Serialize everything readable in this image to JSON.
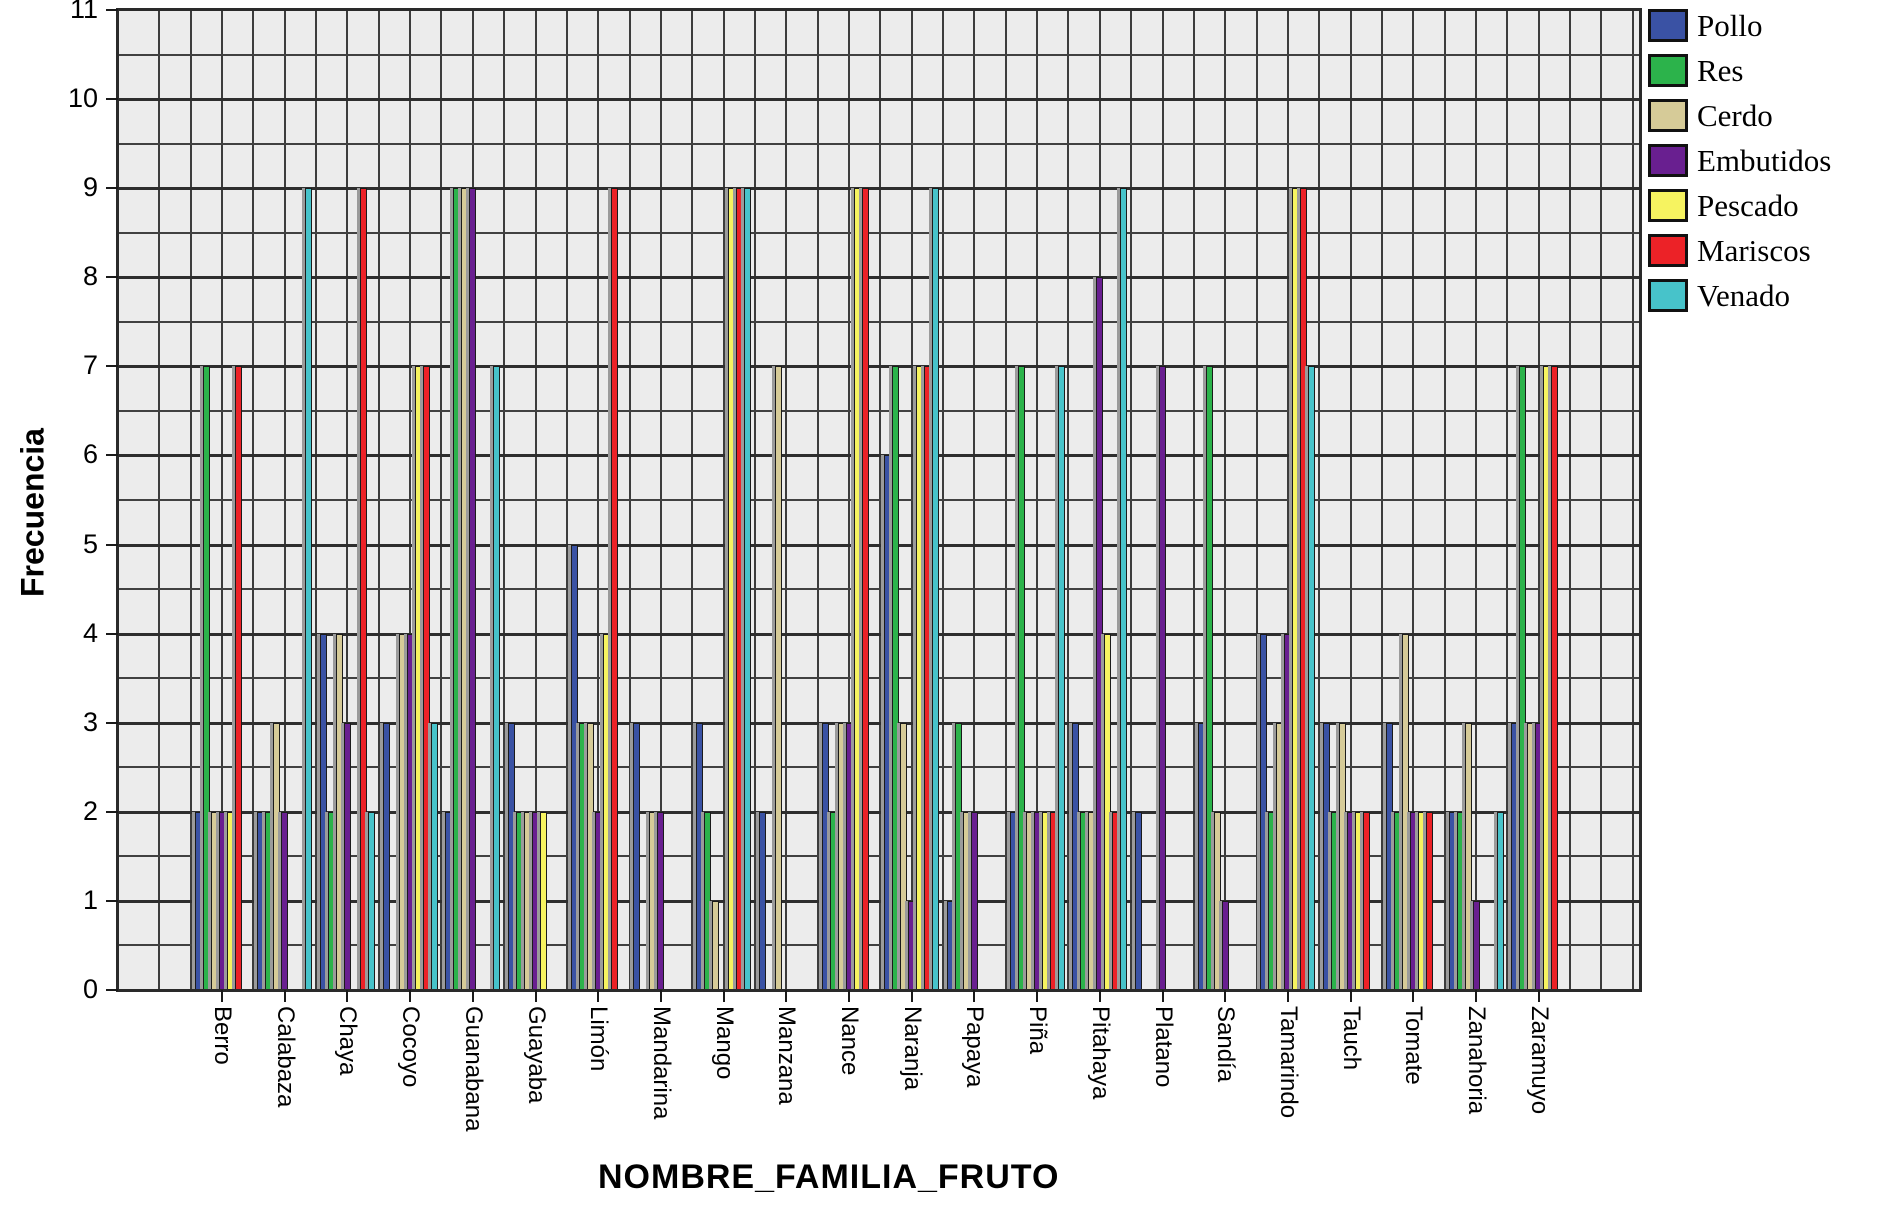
{
  "chart_data": {
    "type": "bar",
    "title": "",
    "xlabel": "NOMBRE_FAMILIA_FRUTO",
    "ylabel": "Frecuencia",
    "ylim": [
      0,
      11
    ],
    "y_ticks": [
      0,
      1,
      2,
      3,
      4,
      5,
      6,
      7,
      8,
      9,
      10,
      11
    ],
    "minor_grid_step": 0.5,
    "grid": "both",
    "legend_position": "top-right-outside",
    "plot_bg": "#ececec",
    "grid_color": "#3c3c3c",
    "categories": [
      "Berro",
      "Calabaza",
      "Chaya",
      "Cocoyo",
      "Guanabana",
      "Guayaba",
      "Limón",
      "Mandarina",
      "Mango",
      "Manzana",
      "Nance",
      "Naranja",
      "Papaya",
      "Piña",
      "Pitahaya",
      "Platano",
      "Sandía",
      "Tamarindo",
      "Tauch",
      "Tomate",
      "Zanahoria",
      "Zaramuyo"
    ],
    "series": [
      {
        "name": "Pollo",
        "color": "#3a52a4",
        "values": [
          2,
          2,
          4,
          3,
          2,
          3,
          5,
          3,
          3,
          2,
          3,
          6,
          1,
          2,
          3,
          2,
          3,
          4,
          3,
          3,
          2,
          3
        ]
      },
      {
        "name": "Res",
        "color": "#2cb34b",
        "values": [
          7,
          2,
          2,
          0,
          9,
          2,
          3,
          0,
          2,
          0,
          2,
          7,
          3,
          7,
          2,
          0,
          7,
          2,
          2,
          2,
          2,
          7
        ]
      },
      {
        "name": "Cerdo",
        "color": "#d6cb98",
        "values": [
          2,
          3,
          4,
          4,
          9,
          2,
          3,
          2,
          1,
          7,
          3,
          3,
          2,
          2,
          2,
          0,
          2,
          3,
          3,
          4,
          3,
          3
        ]
      },
      {
        "name": "Embutidos",
        "color": "#691f90",
        "values": [
          2,
          2,
          3,
          4,
          9,
          2,
          2,
          2,
          0,
          0,
          3,
          1,
          2,
          2,
          8,
          7,
          1,
          4,
          2,
          2,
          1,
          3
        ]
      },
      {
        "name": "Pescado",
        "color": "#f6f360",
        "values": [
          2,
          0,
          0,
          7,
          0,
          2,
          4,
          0,
          9,
          0,
          9,
          7,
          0,
          2,
          4,
          0,
          0,
          9,
          2,
          2,
          0,
          7
        ]
      },
      {
        "name": "Mariscos",
        "color": "#ec2227",
        "values": [
          7,
          0,
          9,
          7,
          0,
          0,
          9,
          0,
          9,
          0,
          9,
          7,
          0,
          2,
          2,
          0,
          0,
          9,
          2,
          2,
          0,
          7
        ]
      },
      {
        "name": "Venado",
        "color": "#47c3ca",
        "values": [
          0,
          9,
          2,
          3,
          7,
          0,
          0,
          0,
          9,
          0,
          0,
          9,
          0,
          7,
          9,
          0,
          0,
          7,
          0,
          0,
          2,
          0
        ]
      }
    ]
  }
}
